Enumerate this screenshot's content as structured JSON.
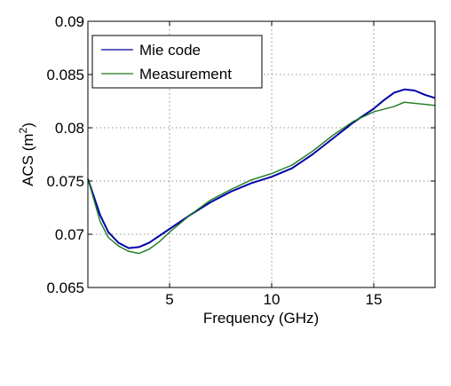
{
  "chart_data": {
    "type": "line",
    "xlabel": "Frequency (GHz)",
    "ylabel_main": "ACS (m",
    "ylabel_sup": "2",
    "ylabel_close": ")",
    "xlim": [
      1,
      18
    ],
    "ylim": [
      0.065,
      0.09
    ],
    "xticks": [
      5,
      10,
      15
    ],
    "xtick_labels": [
      "5",
      "10",
      "15"
    ],
    "yticks": [
      0.065,
      0.07,
      0.075,
      0.08,
      0.085,
      0.09
    ],
    "ytick_labels": [
      "0.065",
      "0.07",
      "0.075",
      "0.08",
      "0.085",
      "0.09"
    ],
    "grid": true,
    "legend_position": "top-left",
    "series": [
      {
        "name": "Mie code",
        "color": "#0000aa",
        "x": [
          1.0,
          1.3,
          1.6,
          2.0,
          2.5,
          3.0,
          3.5,
          4.0,
          5.0,
          6.0,
          7.0,
          8.0,
          9.0,
          10.0,
          11.0,
          12.0,
          13.0,
          14.0,
          15.0,
          15.5,
          16.0,
          16.5,
          17.0,
          17.5,
          18.0
        ],
        "y": [
          0.0752,
          0.0735,
          0.0718,
          0.0702,
          0.0692,
          0.0687,
          0.0688,
          0.0692,
          0.0705,
          0.0718,
          0.073,
          0.074,
          0.0748,
          0.0754,
          0.0762,
          0.0775,
          0.079,
          0.0805,
          0.0818,
          0.0826,
          0.0833,
          0.0836,
          0.0835,
          0.0831,
          0.0828
        ]
      },
      {
        "name": "Measurement",
        "color": "#1a7a1a",
        "x": [
          1.0,
          1.3,
          1.6,
          2.0,
          2.5,
          3.0,
          3.5,
          4.0,
          4.5,
          5.0,
          6.0,
          7.0,
          8.0,
          9.0,
          10.0,
          11.0,
          12.0,
          13.0,
          14.0,
          15.0,
          16.0,
          16.5,
          17.0,
          17.5,
          18.0
        ],
        "y": [
          0.0752,
          0.0732,
          0.0712,
          0.0697,
          0.0689,
          0.0684,
          0.0682,
          0.0686,
          0.0693,
          0.0702,
          0.0718,
          0.0732,
          0.0742,
          0.0751,
          0.0757,
          0.0765,
          0.0778,
          0.0793,
          0.0806,
          0.0815,
          0.082,
          0.0824,
          0.0823,
          0.0822,
          0.0821
        ]
      }
    ]
  }
}
